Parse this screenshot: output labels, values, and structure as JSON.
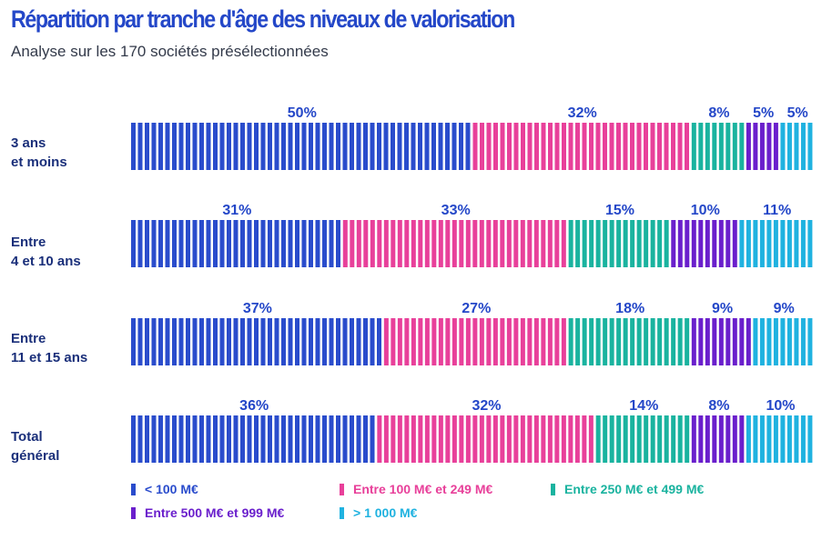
{
  "title": "Répartition par tranche d'âge des niveaux de valorisation",
  "subtitle": "Analyse sur les 170 sociétés présélectionnées",
  "colors": {
    "title": "#2447c8",
    "label": "#1a2f7a",
    "lt100": "#2a4ccc",
    "100_249": "#e8409a",
    "250_499": "#1ab39f",
    "500_999": "#6a1fcc",
    "gt1000": "#1fb2e0"
  },
  "row_labels": [
    {
      "line1": "3 ans",
      "line2": "et moins"
    },
    {
      "line1": "Entre",
      "line2": "4 et 10 ans"
    },
    {
      "line1": "Entre",
      "line2": "11 et 15 ans"
    },
    {
      "line1": "Total",
      "line2": "général"
    }
  ],
  "legend": [
    {
      "label": "< 100 M€",
      "color": "#2a4ccc"
    },
    {
      "label": "Entre 100 M€ et 249 M€",
      "color": "#e8409a"
    },
    {
      "label": "Entre 250 M€ et 499 M€",
      "color": "#1ab39f"
    },
    {
      "label": "Entre 500 M€ et 999 M€",
      "color": "#6a1fcc"
    },
    {
      "label": "> 1 000 M€",
      "color": "#1fb2e0"
    }
  ],
  "chart_data": {
    "type": "bar",
    "orientation": "horizontal",
    "stacked": true,
    "normalized": true,
    "title": "Répartition par tranche d'âge des niveaux de valorisation",
    "subtitle": "Analyse sur les 170 sociétés présélectionnées",
    "categories": [
      "3 ans et moins",
      "Entre 4 et 10 ans",
      "Entre 11 et 15 ans",
      "Total général"
    ],
    "series": [
      {
        "name": "< 100 M€",
        "values": [
          50,
          31,
          37,
          36
        ],
        "labels": [
          "50%",
          "31%",
          "37%",
          "36%"
        ]
      },
      {
        "name": "Entre 100 M€ et 249 M€",
        "values": [
          32,
          33,
          27,
          32
        ],
        "labels": [
          "32%",
          "33%",
          "27%",
          "32%"
        ]
      },
      {
        "name": "Entre 250 M€ et 499 M€",
        "values": [
          8,
          15,
          18,
          14
        ],
        "labels": [
          "8%",
          "15%",
          "18%",
          "14%"
        ]
      },
      {
        "name": "Entre 500 M€ et 999 M€",
        "values": [
          5,
          10,
          9,
          8
        ],
        "labels": [
          "5%",
          "10%",
          "9%",
          "8%"
        ]
      },
      {
        "name": "> 1 000 M€",
        "values": [
          5,
          11,
          9,
          10
        ],
        "labels": [
          "5%",
          "11%",
          "9%",
          "10%"
        ]
      }
    ],
    "xlabel": "",
    "ylabel": "",
    "unit": "%",
    "grid": false,
    "legend_position": "bottom"
  }
}
